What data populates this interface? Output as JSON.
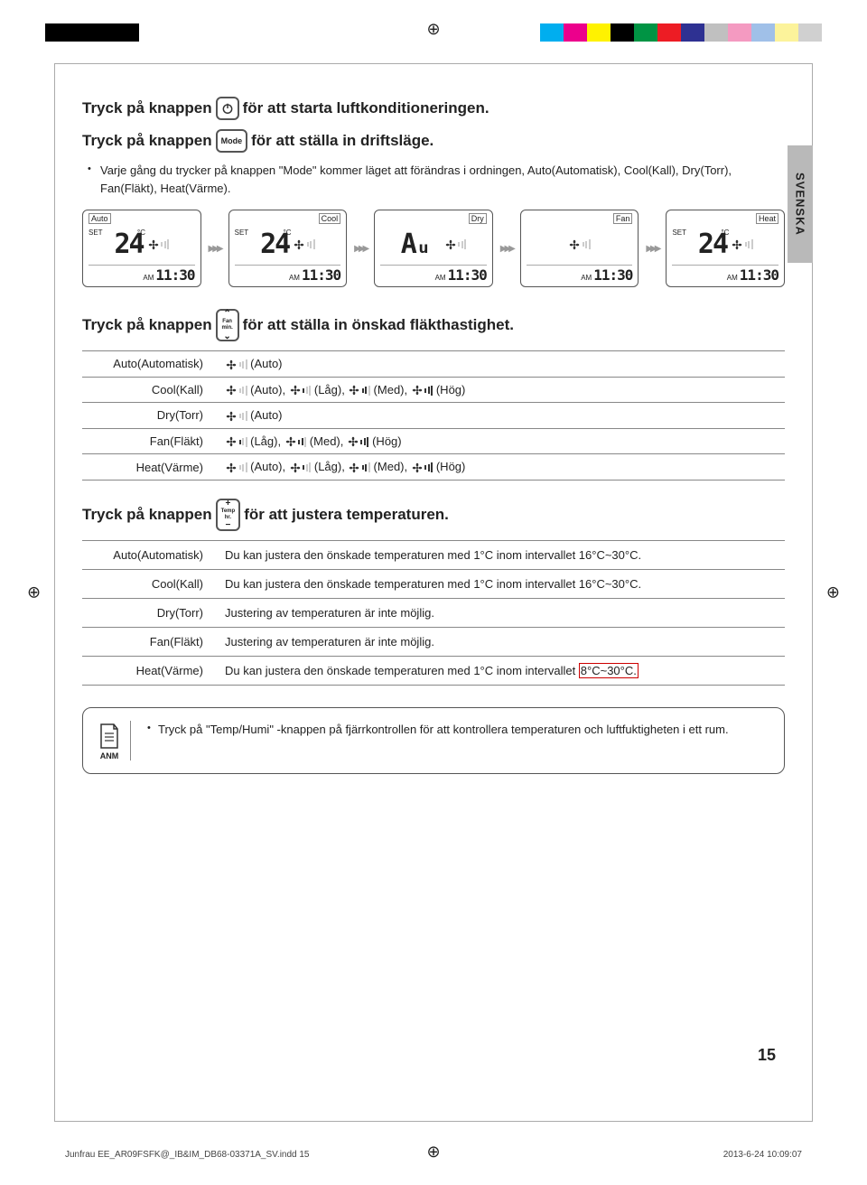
{
  "reg_colors_left": [
    "#000000",
    "#000000",
    "#000000",
    "#000000"
  ],
  "reg_colors_right": [
    "#00aeef",
    "#ec008c",
    "#fff200",
    "#000000",
    "#009444",
    "#ed1c24",
    "#2e3192",
    "#c0c0c0",
    "#f49ac1",
    "#a0c0e8",
    "#fcf39b",
    "#d0d0d0"
  ],
  "lang_tab": "SVENSKA",
  "line1_a": "Tryck på knappen",
  "line1_b": "för att starta luftkonditioneringen.",
  "line2_a": "Tryck på knappen",
  "line2_b": "för att ställa in driftsläge.",
  "mode_btn": "Mode",
  "bullet_mode": "Varje gång du trycker på knappen \"Mode\" kommer läget att förändras i ordningen, Auto(Automatisk), Cool(Kall), Dry(Torr), Fan(Fläkt), Heat(Värme).",
  "lcd": [
    {
      "label": "Auto",
      "hasTemp": true,
      "temp": "24",
      "time": "11:30",
      "ampm": "AM",
      "align": "left"
    },
    {
      "label": "Cool",
      "hasTemp": true,
      "temp": "24",
      "time": "11:30",
      "ampm": "AM"
    },
    {
      "label": "Dry",
      "hasTemp": false,
      "centerText": "Aᵤ",
      "time": "11:30",
      "ampm": "AM"
    },
    {
      "label": "Fan",
      "hasTemp": false,
      "centerText": "",
      "time": "11:30",
      "ampm": "AM"
    },
    {
      "label": "Heat",
      "hasTemp": true,
      "temp": "24",
      "time": "11:30",
      "ampm": "AM"
    }
  ],
  "line3_a": "Tryck på knappen",
  "line3_b": "för att ställa in önskad fläkthastighet.",
  "fan_btn_top": "Fan",
  "fan_btn_bot": "min.",
  "speed_rows": [
    {
      "mode": "Auto(Automatisk)",
      "opts": [
        {
          "level": "auto",
          "label": "(Auto)"
        }
      ]
    },
    {
      "mode": "Cool(Kall)",
      "opts": [
        {
          "level": "auto",
          "label": "(Auto),"
        },
        {
          "level": "low",
          "label": "(Låg),"
        },
        {
          "level": "med",
          "label": "(Med),"
        },
        {
          "level": "high",
          "label": "(Hög)"
        }
      ]
    },
    {
      "mode": "Dry(Torr)",
      "opts": [
        {
          "level": "auto",
          "label": "(Auto)"
        }
      ]
    },
    {
      "mode": "Fan(Fläkt)",
      "opts": [
        {
          "level": "low",
          "label": "(Låg),"
        },
        {
          "level": "med",
          "label": "(Med),"
        },
        {
          "level": "high",
          "label": "(Hög)"
        }
      ]
    },
    {
      "mode": "Heat(Värme)",
      "opts": [
        {
          "level": "auto",
          "label": "(Auto),"
        },
        {
          "level": "low",
          "label": "(Låg),"
        },
        {
          "level": "med",
          "label": "(Med),"
        },
        {
          "level": "high",
          "label": "(Hög)"
        }
      ]
    }
  ],
  "line4_a": "Tryck på knappen",
  "line4_b": "för att justera temperaturen.",
  "temp_btn_top": "Temp",
  "temp_btn_bot": "hr.",
  "temp_rows": [
    {
      "mode": "Auto(Automatisk)",
      "text": "Du kan justera den önskade temperaturen med 1°C inom intervallet 16°C~30°C."
    },
    {
      "mode": "Cool(Kall)",
      "text": "Du kan justera den önskade temperaturen med 1°C inom intervallet 16°C~30°C."
    },
    {
      "mode": "Dry(Torr)",
      "text": "Justering av temperaturen är inte möjlig."
    },
    {
      "mode": "Fan(Fläkt)",
      "text": "Justering av temperaturen är inte möjlig."
    },
    {
      "mode": "Heat(Värme)",
      "text_pre": "Du kan justera den önskade temperaturen med 1°C inom intervallet ",
      "highlight": "8°C~30°C.",
      "text_post": ""
    }
  ],
  "note_label": "ANM",
  "note_text": "Tryck på \"Temp/Humi\" -knappen på fjärrkontrollen för att kontrollera temperaturen och luftfuktigheten i ett rum.",
  "page_num": "15",
  "footer_left": "Junfrau EE_AR09FSFK@_IB&IM_DB68-03371A_SV.indd   15",
  "footer_right": "2013-6-24   10:09:07"
}
